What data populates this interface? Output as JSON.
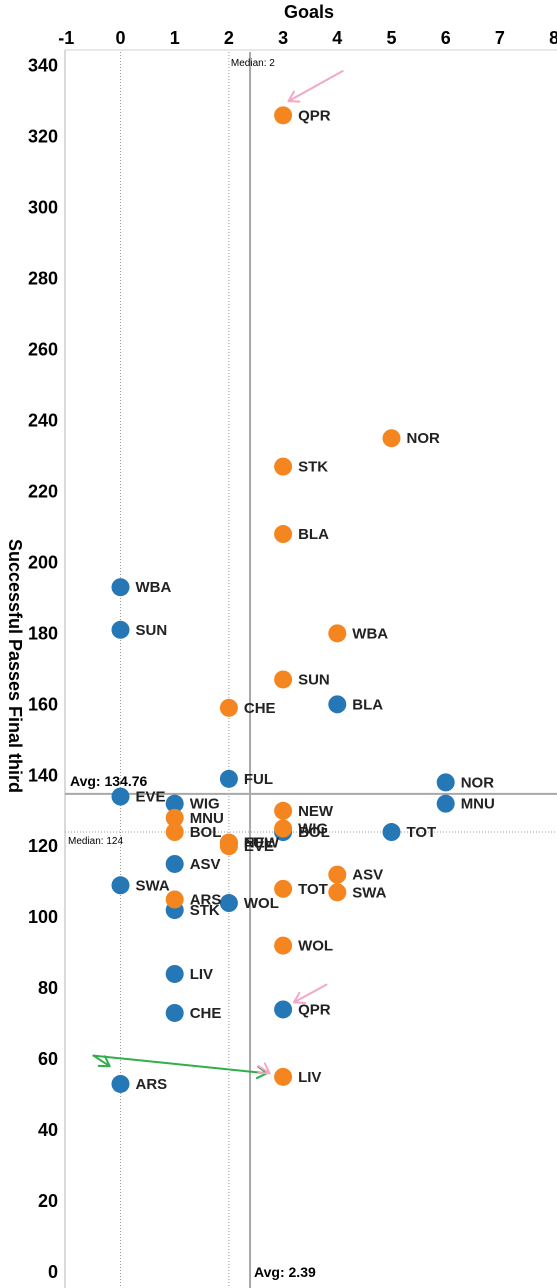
{
  "chart_data": {
    "type": "scatter",
    "xlabel": "Goals",
    "ylabel": "Successful Passes Final third",
    "xlim": [
      -1,
      8
    ],
    "ylim": [
      0,
      345
    ],
    "x_ticks": [
      "-1",
      "0",
      "1",
      "2",
      "3",
      "4",
      "5",
      "6",
      "7",
      "8"
    ],
    "y_ticks": [
      "0",
      "20",
      "40",
      "60",
      "80",
      "100",
      "120",
      "140",
      "160",
      "180",
      "200",
      "220",
      "240",
      "260",
      "280",
      "300",
      "320",
      "340"
    ],
    "x_tick_values": [
      -1,
      0,
      1,
      2,
      3,
      4,
      5,
      6,
      7,
      8
    ],
    "y_tick_values": [
      0,
      20,
      40,
      60,
      80,
      100,
      120,
      140,
      160,
      180,
      200,
      220,
      240,
      260,
      280,
      300,
      320,
      340
    ],
    "grid": false,
    "reference_lines": {
      "x_median": {
        "value": 2,
        "label": "Median: 2"
      },
      "x_avg": {
        "value": 2.39,
        "label": "Avg: 2.39"
      },
      "y_median": {
        "value": 124,
        "label": "Median: 124"
      },
      "y_avg": {
        "value": 134.76,
        "label": "Avg: 134.76"
      }
    },
    "colors": {
      "blue": "#2677b5",
      "orange": "#f5851f",
      "pink_arrow": "#f4a6c6",
      "green_arrow": "#2fae4a"
    },
    "series": [
      {
        "color": "#2677b5",
        "points": [
          {
            "x": 0,
            "y": 193,
            "label": "WBA"
          },
          {
            "x": 0,
            "y": 181,
            "label": "SUN"
          },
          {
            "x": 0,
            "y": 134,
            "label": "EVE"
          },
          {
            "x": 0,
            "y": 109,
            "label": "SWA"
          },
          {
            "x": 0,
            "y": 53,
            "label": "ARS"
          },
          {
            "x": 1,
            "y": 132,
            "label": "WIG"
          },
          {
            "x": 1,
            "y": 115,
            "label": "ASV"
          },
          {
            "x": 1,
            "y": 102,
            "label": "STK"
          },
          {
            "x": 1,
            "y": 84,
            "label": "LIV"
          },
          {
            "x": 1,
            "y": 73,
            "label": "CHE"
          },
          {
            "x": 2,
            "y": 139,
            "label": "FUL"
          },
          {
            "x": 2,
            "y": 104,
            "label": "WOL"
          },
          {
            "x": 2,
            "y": 121,
            "label": "NEW"
          },
          {
            "x": 3,
            "y": 124,
            "label": "BOL"
          },
          {
            "x": 3,
            "y": 74,
            "label": "QPR"
          },
          {
            "x": 4,
            "y": 160,
            "label": "BLA"
          },
          {
            "x": 5,
            "y": 124,
            "label": "TOT"
          },
          {
            "x": 6,
            "y": 138,
            "label": "NOR"
          },
          {
            "x": 6,
            "y": 132,
            "label": "MNU"
          }
        ]
      },
      {
        "color": "#f5851f",
        "points": [
          {
            "x": 3,
            "y": 326,
            "label": "QPR"
          },
          {
            "x": 5,
            "y": 235,
            "label": "NOR"
          },
          {
            "x": 3,
            "y": 227,
            "label": "STK"
          },
          {
            "x": 3,
            "y": 208,
            "label": "BLA"
          },
          {
            "x": 4,
            "y": 180,
            "label": "WBA"
          },
          {
            "x": 3,
            "y": 167,
            "label": "SUN"
          },
          {
            "x": 2,
            "y": 159,
            "label": "CHE"
          },
          {
            "x": 3,
            "y": 130,
            "label": "NEW"
          },
          {
            "x": 3,
            "y": 125,
            "label": "WIG"
          },
          {
            "x": 1,
            "y": 128,
            "label": "MNU"
          },
          {
            "x": 1,
            "y": 124,
            "label": "BOL"
          },
          {
            "x": 2,
            "y": 121,
            "label": "FUL"
          },
          {
            "x": 2,
            "y": 120,
            "label": "EVE"
          },
          {
            "x": 4,
            "y": 112,
            "label": "ASV"
          },
          {
            "x": 4,
            "y": 107,
            "label": "SWA"
          },
          {
            "x": 3,
            "y": 108,
            "label": "TOT"
          },
          {
            "x": 1,
            "y": 105,
            "label": "ARS"
          },
          {
            "x": 3,
            "y": 92,
            "label": "WOL"
          },
          {
            "x": 3,
            "y": 55,
            "label": "LIV"
          }
        ]
      }
    ],
    "annotations": [
      {
        "type": "arrow",
        "color": "#f4a6c6",
        "from": [
          4.1,
          338.5
        ],
        "to": [
          3.1,
          330
        ]
      },
      {
        "type": "arrow",
        "color": "#f4a6c6",
        "from": [
          3.8,
          81
        ],
        "to": [
          3.2,
          76
        ]
      },
      {
        "type": "arrow",
        "color": "#2fae4a",
        "from": [
          -0.5,
          61
        ],
        "to": [
          2.7,
          56
        ]
      },
      {
        "type": "arrow",
        "color": "#2fae4a",
        "from": [
          -0.5,
          61
        ],
        "to": [
          -0.2,
          58
        ]
      },
      {
        "type": "arrow",
        "color": "#f4a6c6",
        "from": [
          2.55,
          58
        ],
        "to": [
          2.75,
          56
        ]
      }
    ]
  }
}
